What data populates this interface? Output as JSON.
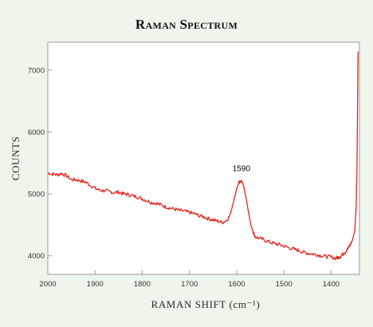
{
  "chart_data": {
    "type": "line",
    "title": "Raman Spectrum",
    "xlabel": "RAMAN SHIFT (cm⁻¹)",
    "ylabel": "COUNTS",
    "xlim": [
      2000,
      1340
    ],
    "ylim": [
      3700,
      7450
    ],
    "x_ticks": [
      2000,
      1900,
      1800,
      1700,
      1600,
      1500,
      1400
    ],
    "y_ticks": [
      4000,
      5000,
      6000,
      7000
    ],
    "grid": false,
    "line_color": "#e8231a",
    "annotations": [
      {
        "text": "1590",
        "x": 1590,
        "y": 5290
      }
    ],
    "series": [
      {
        "x": [
          2000,
          1990,
          1980,
          1970,
          1960,
          1950,
          1940,
          1930,
          1920,
          1910,
          1900,
          1890,
          1880,
          1870,
          1860,
          1850,
          1840,
          1830,
          1820,
          1810,
          1800,
          1790,
          1780,
          1770,
          1760,
          1750,
          1740,
          1730,
          1720,
          1710,
          1700,
          1690,
          1680,
          1670,
          1660,
          1650,
          1640,
          1630,
          1620,
          1615,
          1610,
          1605,
          1600,
          1595,
          1590,
          1585,
          1580,
          1575,
          1570,
          1565,
          1560,
          1550,
          1540,
          1530,
          1520,
          1510,
          1500,
          1490,
          1480,
          1470,
          1460,
          1450,
          1440,
          1430,
          1420,
          1410,
          1400,
          1390,
          1385,
          1380,
          1375,
          1370,
          1365,
          1360,
          1355,
          1350,
          1347,
          1345,
          1343
        ],
        "values": [
          5340,
          5320,
          5310,
          5330,
          5290,
          5230,
          5230,
          5210,
          5190,
          5140,
          5090,
          5060,
          5050,
          5040,
          5020,
          5030,
          5000,
          4990,
          4970,
          4950,
          4920,
          4890,
          4860,
          4850,
          4820,
          4790,
          4770,
          4750,
          4730,
          4720,
          4700,
          4680,
          4650,
          4630,
          4600,
          4580,
          4560,
          4540,
          4580,
          4650,
          4770,
          4930,
          5080,
          5190,
          5220,
          5120,
          4930,
          4700,
          4500,
          4380,
          4300,
          4280,
          4250,
          4220,
          4200,
          4180,
          4160,
          4130,
          4110,
          4090,
          4060,
          4040,
          4030,
          4020,
          4000,
          3990,
          3980,
          3960,
          3975,
          3990,
          4030,
          4060,
          4110,
          4170,
          4250,
          4400,
          4800,
          5500,
          7300
        ]
      }
    ]
  }
}
